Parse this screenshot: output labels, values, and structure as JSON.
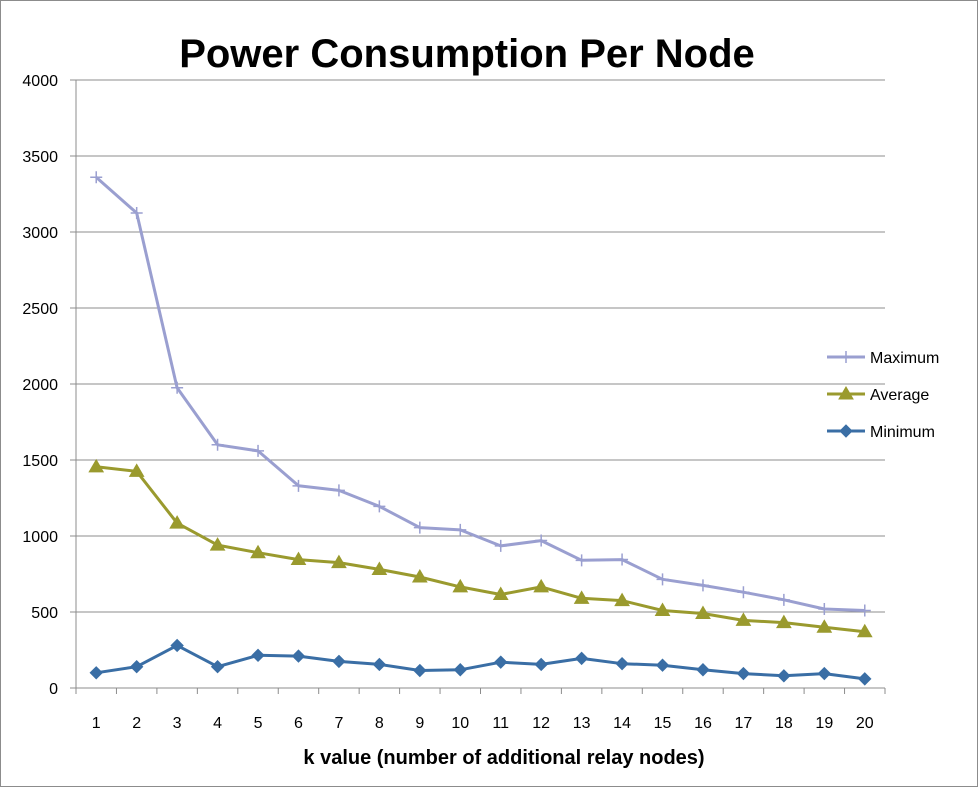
{
  "chart_data": {
    "type": "line",
    "title": "Power Consumption Per Node",
    "xlabel": "k value (number of additional relay nodes)",
    "ylabel": "",
    "x": [
      1,
      2,
      3,
      4,
      5,
      6,
      7,
      8,
      9,
      10,
      11,
      12,
      13,
      14,
      15,
      16,
      17,
      18,
      19,
      20
    ],
    "ylim": [
      0,
      4000
    ],
    "yticks": [
      0,
      500,
      1000,
      1500,
      2000,
      2500,
      3000,
      3500,
      4000
    ],
    "grid": "horizontal",
    "legend_position": "right",
    "series": [
      {
        "name": "Maximum",
        "color": "#9a9fd0",
        "marker": "plus",
        "values": [
          3360,
          3125,
          1975,
          1600,
          1560,
          1330,
          1300,
          1195,
          1055,
          1040,
          935,
          970,
          840,
          845,
          715,
          675,
          630,
          580,
          520,
          510
        ]
      },
      {
        "name": "Average",
        "color": "#9a9a2e",
        "marker": "triangle",
        "values": [
          1455,
          1425,
          1085,
          940,
          890,
          845,
          825,
          780,
          730,
          665,
          615,
          665,
          590,
          575,
          510,
          490,
          445,
          430,
          400,
          370
        ]
      },
      {
        "name": "Minimum",
        "color": "#3a6ea5",
        "marker": "diamond",
        "values": [
          100,
          140,
          280,
          140,
          215,
          210,
          175,
          155,
          115,
          120,
          170,
          155,
          195,
          160,
          150,
          120,
          95,
          80,
          95,
          60
        ]
      }
    ]
  }
}
